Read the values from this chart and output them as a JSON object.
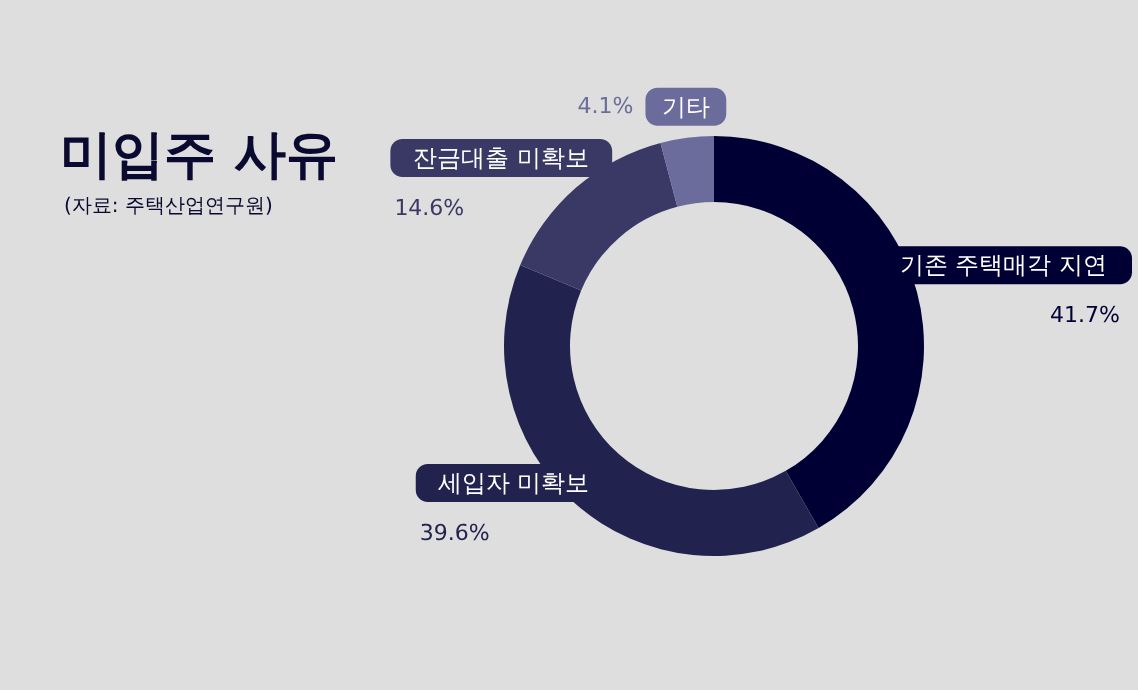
{
  "chart_data": {
    "type": "donut",
    "title": "미입주 사유",
    "annotations": [
      "(자료: 주택산업연구원)"
    ],
    "categories": [
      "기존 주택매각 지연",
      "세입자 미확보",
      "잔금대출 미확보",
      "기타"
    ],
    "values": [
      41.7,
      39.6,
      14.6,
      4.1
    ],
    "value_labels": [
      "41.7%",
      "39.6%",
      "14.6%",
      "4.1%"
    ],
    "colors": [
      "#000035",
      "#22224f",
      "#3a3966",
      "#6c6c9c"
    ]
  }
}
